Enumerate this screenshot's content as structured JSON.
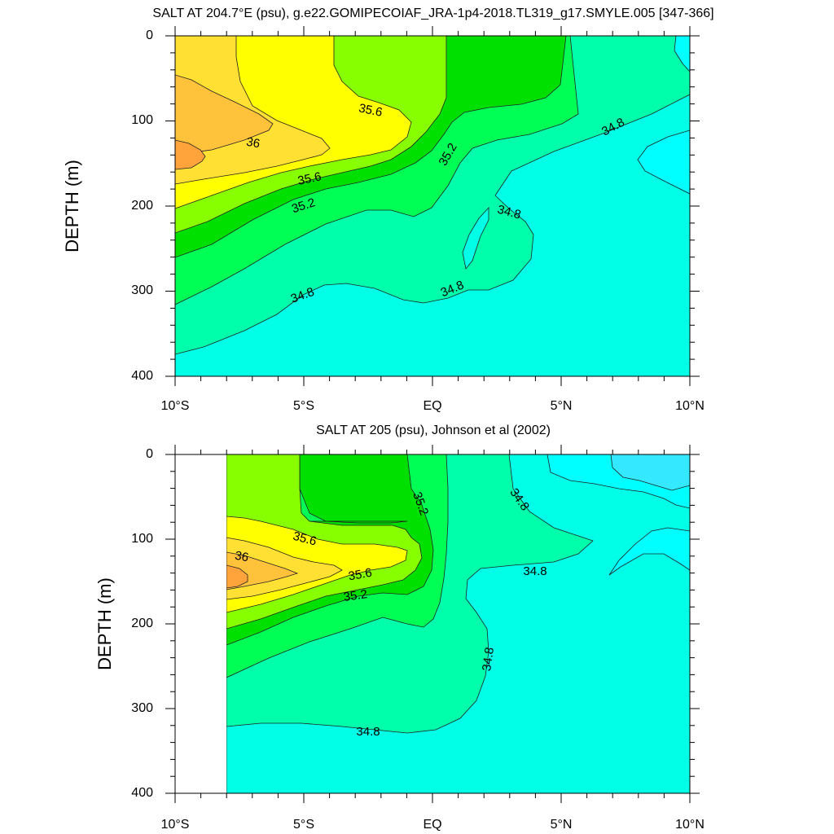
{
  "chart_data": [
    {
      "type": "contour",
      "title": "SALT AT 204.7°E (psu), g.e22.GOMIPECOIAF_JRA-1p4-2018.TL319_g17.SMYLE.005 [347-366]",
      "ylabel": "DEPTH (m)",
      "xlabel": "",
      "x_range": [
        -10,
        10
      ],
      "y_range": [
        0,
        400
      ],
      "y_reversed": true,
      "x_ticks": [
        "10°S",
        "5°S",
        "EQ",
        "5°N",
        "10°N"
      ],
      "y_ticks": [
        "0",
        "100",
        "200",
        "300",
        "400"
      ],
      "contour_labels": [
        {
          "text": "35.6",
          "lat": -2.6,
          "depth": 87
        },
        {
          "text": "36",
          "lat": -6.8,
          "depth": 127
        },
        {
          "text": "35.6",
          "lat": -5.4,
          "depth": 172
        },
        {
          "text": "35.2",
          "lat": -5.3,
          "depth": 204
        },
        {
          "text": "35.2",
          "lat": 0.6,
          "depth": 143
        },
        {
          "text": "34.8",
          "lat": 7.1,
          "depth": 105
        },
        {
          "text": "34.8",
          "lat": 2.9,
          "depth": 214
        },
        {
          "text": "34.8",
          "lat": -5.3,
          "depth": 297
        },
        {
          "text": "34.8",
          "lat": 0.7,
          "depth": 297
        }
      ]
    },
    {
      "type": "contour",
      "title": "SALT AT 205 (psu), Johnson et al (2002)",
      "ylabel": "DEPTH (m)",
      "xlabel": "",
      "x_range": [
        -10,
        10
      ],
      "y_range": [
        0,
        400
      ],
      "y_reversed": true,
      "x_ticks": [
        "10°S",
        "5°S",
        "EQ",
        "5°N",
        "10°N"
      ],
      "y_ticks": [
        "0",
        "100",
        "200",
        "300",
        "400"
      ],
      "contour_labels": [
        {
          "text": "35.2",
          "lat": -0.6,
          "depth": 62
        },
        {
          "text": "34.8",
          "lat": 3.3,
          "depth": 60
        },
        {
          "text": "35.6",
          "lat": -4.9,
          "depth": 102
        },
        {
          "text": "36",
          "lat": -7.6,
          "depth": 122
        },
        {
          "text": "35.6",
          "lat": -2.9,
          "depth": 142
        },
        {
          "text": "35.2",
          "lat": -3.0,
          "depth": 167
        },
        {
          "text": "34.8",
          "lat": 4.0,
          "depth": 140
        },
        {
          "text": "34.8",
          "lat": 2.2,
          "depth": 238
        },
        {
          "text": "34.8",
          "lat": -2.4,
          "depth": 326
        }
      ]
    }
  ]
}
